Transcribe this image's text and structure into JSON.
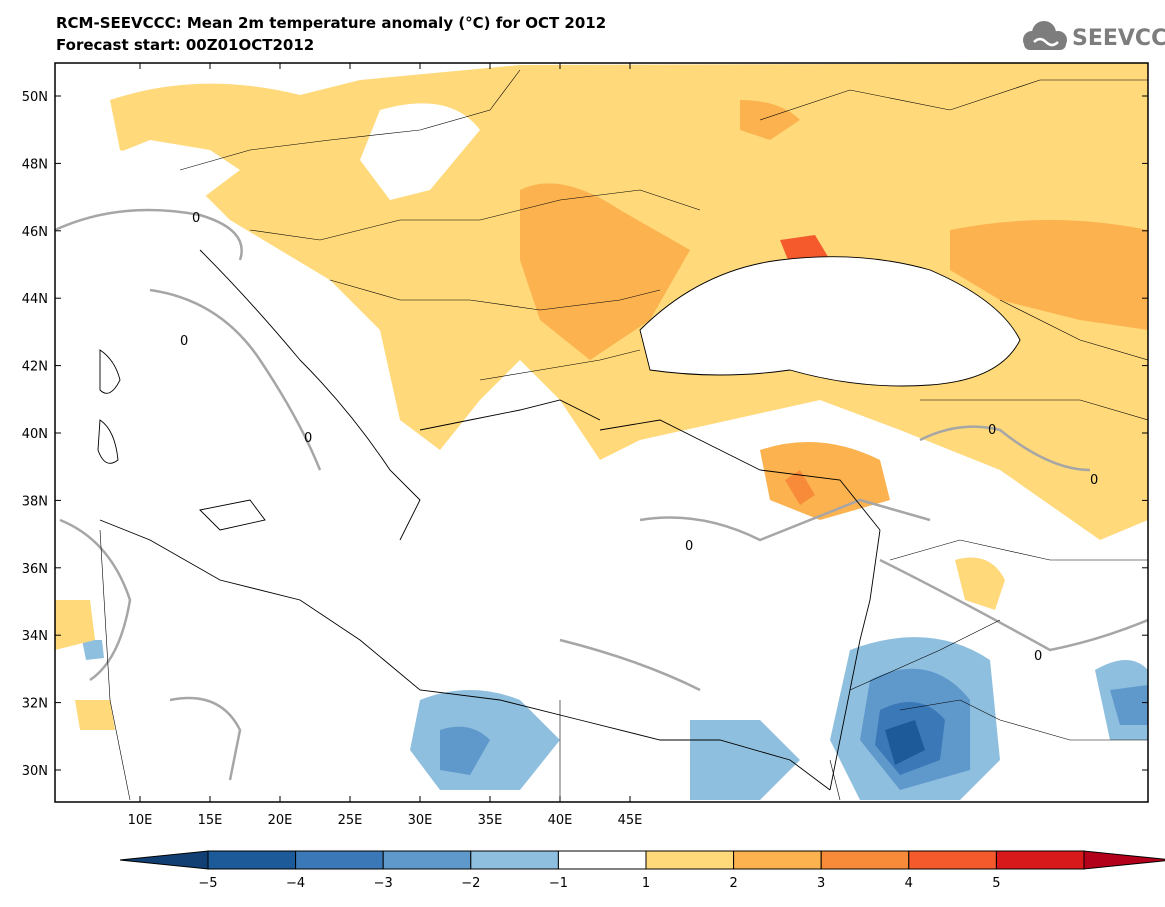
{
  "title_line1": "RCM-SEEVCCC: Mean 2m temperature anomaly (°C) for OCT 2012",
  "title_line2": "Forecast start: 00Z01OCT2012",
  "logo_text": "SEEVCCC",
  "logo_icon": "cloud-icon",
  "map": {
    "lon_range": [
      7,
      46
    ],
    "lat_range": [
      29,
      51
    ],
    "lat_labels": [
      "50N",
      "48N",
      "46N",
      "44N",
      "42N",
      "40N",
      "38N",
      "36N",
      "34N",
      "32N",
      "30N"
    ],
    "lon_labels": [
      "10E",
      "15E",
      "20E",
      "25E",
      "30E",
      "35E",
      "40E",
      "45E"
    ],
    "contour_label": "0"
  },
  "colorbar": {
    "labels": [
      "−5",
      "−4",
      "−3",
      "−2",
      "−1",
      "1",
      "2",
      "3",
      "4",
      "5"
    ],
    "colors": [
      "#1d5a99",
      "#3a78b8",
      "#5f98cb",
      "#8fbfdf",
      "#ffffff",
      "#ffd97a",
      "#fbb24f",
      "#f88b3a",
      "#f45a2b",
      "#d7191c"
    ],
    "low_color": "#123f73",
    "high_color": "#b3001b"
  }
}
